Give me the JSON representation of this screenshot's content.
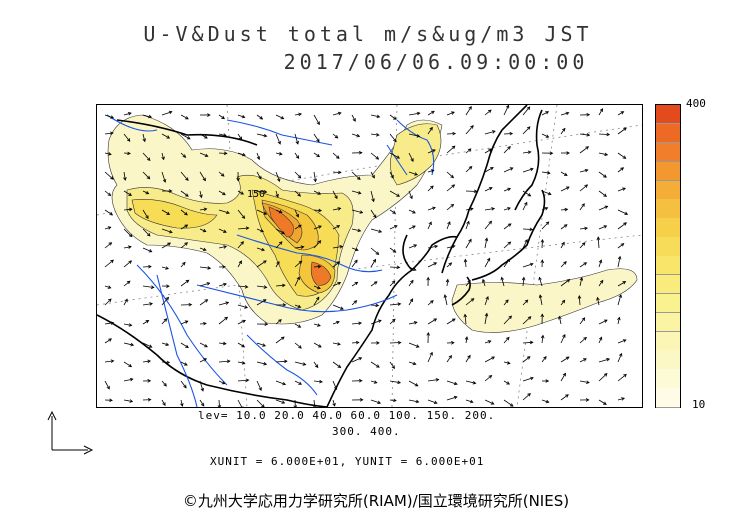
{
  "header": {
    "title_line1": "U-V&Dust total m/s&ug/m3 JST",
    "title_line2": "2017/06/06.09:00:00"
  },
  "map": {
    "contour_label": "150",
    "colors": {
      "level_10": "#fbf6c8",
      "level_20": "#f8ec8a",
      "level_40": "#f6dd55",
      "level_60": "#f3c63c",
      "level_100": "#f0a530",
      "level_150": "#ee7a28",
      "level_200": "#e85524",
      "river": "#1a55e6",
      "coast": "#000000",
      "wind_arrow": "#000000"
    },
    "layers": [
      "dust-concentration",
      "wind-vectors",
      "coastlines",
      "rivers",
      "lat-lon-grid"
    ]
  },
  "colorbar": {
    "max_label": "400",
    "min_label": "10",
    "colors": [
      "#e34a1c",
      "#ec6a24",
      "#f07e2a",
      "#f2982f",
      "#f4ad36",
      "#f5c03f",
      "#f6d049",
      "#f7dc5a",
      "#f8e56a",
      "#f9ec7d",
      "#faf18f",
      "#fbf4a3",
      "#fbf6b5",
      "#fcf8c6",
      "#fdfad6",
      "#fefce6"
    ]
  },
  "legend": {
    "lev_line1": "lev= 10.0 20.0 40.0 60.0 100. 150. 200.",
    "lev_line2": "300. 400.",
    "units": "XUNIT = 6.000E+01, YUNIT = 6.000E+01"
  },
  "footer": {
    "credit": "©九州大学応用力学研究所(RIAM)/国立環境研究所(NIES)"
  }
}
